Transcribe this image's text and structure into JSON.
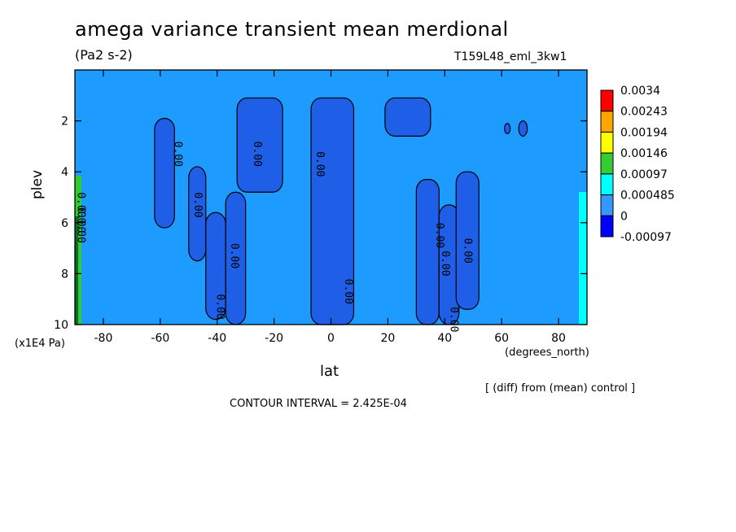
{
  "title": "amega variance transient mean merdional",
  "units": "(Pa2 s-2)",
  "run_label": "T159L48_eml_3kw1",
  "diff_note": "[ (diff) from (mean) control ]",
  "contour_interval": "CONTOUR INTERVAL = 2.425E-04",
  "chart_data": {
    "type": "heatmap",
    "xlabel": "lat",
    "x_unit": "(degrees_north)",
    "ylabel": "plev",
    "y_unit": "(x1E4 Pa)",
    "xlim": [
      -90,
      90
    ],
    "ylim": [
      10,
      0
    ],
    "x_ticks": [
      -80,
      -60,
      -40,
      -20,
      0,
      20,
      40,
      60,
      80
    ],
    "y_ticks": [
      2,
      4,
      6,
      8,
      10
    ],
    "colorbar": {
      "labels": [
        "0.0034",
        "0.00243",
        "0.00194",
        "0.00146",
        "0.00097",
        "0.000485",
        "0",
        "-0.00097"
      ],
      "colors": [
        "#ff0000",
        "#ffa500",
        "#ffff00",
        "#33cc33",
        "#00ffff",
        "#3399ff",
        "#0000ff"
      ]
    },
    "background_level": "0 to 0.000485",
    "background_color": "#1e9bff",
    "negative_color": "#1f5fe8",
    "contour_labels": [
      "0.00",
      "0.00",
      "0.00",
      "0.00",
      "0.00",
      "0.00",
      "0.00",
      "0.00",
      "0.00",
      "0.00",
      "0.00",
      "0.00",
      "0.00",
      "0.00"
    ],
    "negative_regions": [
      {
        "name": "sh-60",
        "lat": [
          -62,
          -55
        ],
        "plev": [
          1.9,
          6.2
        ]
      },
      {
        "name": "sh-50",
        "lat": [
          -50,
          -44
        ],
        "plev": [
          3.8,
          7.5
        ]
      },
      {
        "name": "sh-40",
        "lat": [
          -44,
          -37
        ],
        "plev": [
          5.6,
          9.8
        ]
      },
      {
        "name": "sh-30",
        "lat": [
          -37,
          -30
        ],
        "plev": [
          4.8,
          10
        ]
      },
      {
        "name": "sh-20",
        "lat": [
          -33,
          -17
        ],
        "plev": [
          1.1,
          4.8
        ]
      },
      {
        "name": "equator",
        "lat": [
          -7,
          8
        ],
        "plev": [
          1.1,
          10
        ]
      },
      {
        "name": "nh-20",
        "lat": [
          19,
          35
        ],
        "plev": [
          1.1,
          2.6
        ]
      },
      {
        "name": "nh-30",
        "lat": [
          30,
          38
        ],
        "plev": [
          4.3,
          10
        ]
      },
      {
        "name": "nh-40",
        "lat": [
          38,
          45
        ],
        "plev": [
          5.3,
          10
        ]
      },
      {
        "name": "nh-50",
        "lat": [
          44,
          52
        ],
        "plev": [
          4.0,
          9.4
        ]
      },
      {
        "name": "nh-60",
        "lat": [
          61,
          63
        ],
        "plev": [
          2.1,
          2.5
        ]
      },
      {
        "name": "nh-70",
        "lat": [
          66,
          69
        ],
        "plev": [
          2.0,
          2.6
        ]
      }
    ]
  }
}
